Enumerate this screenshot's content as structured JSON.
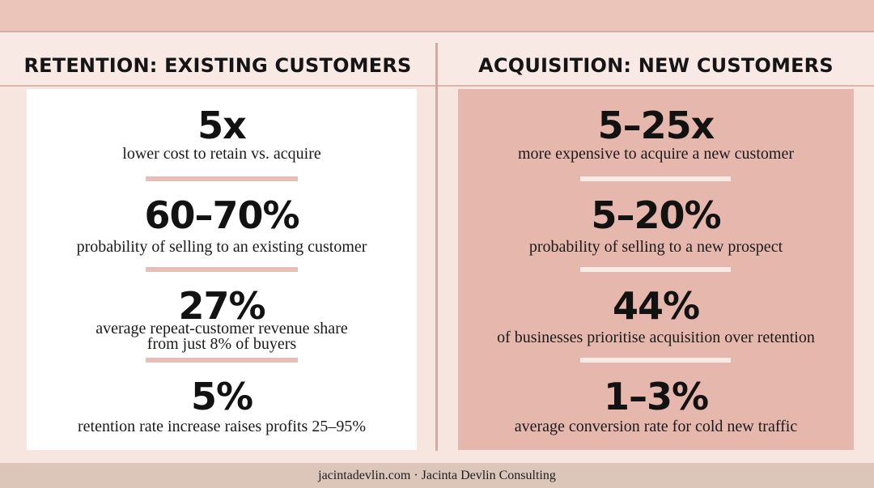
{
  "retention": {
    "title": "RETENTION: EXISTING CUSTOMERS",
    "stats": [
      {
        "value": "5x",
        "desc": "lower cost to retain vs. acquire"
      },
      {
        "value": "60–70%",
        "desc": "probability of selling to an existing customer"
      },
      {
        "value": "27%",
        "desc_line1": "average repeat-customer revenue share",
        "desc_line2": "from just 8% of buyers"
      },
      {
        "value": "5%",
        "desc": "retention rate increase raises profits 25–95%"
      }
    ]
  },
  "acquisition": {
    "title": "ACQUISITION: NEW CUSTOMERS",
    "stats": [
      {
        "value": "5–25x",
        "desc": "more expensive to acquire a new customer"
      },
      {
        "value": "5–20%",
        "desc": "probability of selling to a new prospect"
      },
      {
        "value": "44%",
        "desc": "of businesses prioritise acquisition over retention"
      },
      {
        "value": "1–3%",
        "desc": "average conversion rate for cold new traffic"
      }
    ]
  },
  "footer": {
    "text": "jacintadevlin.com · Jacinta Devlin Consulting"
  },
  "colors": {
    "background": "#f7e6e0",
    "left_panel": "#ffffff",
    "right_panel": "#e6b7ac",
    "accent_rule": "#ecc5ba",
    "footer_bar": "#dcc6ba",
    "text": "#121212"
  }
}
